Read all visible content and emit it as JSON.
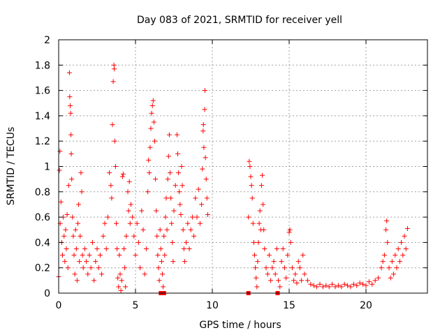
{
  "chart_data": {
    "type": "scatter",
    "title": "Day 083 of 2021, SRMTID for receiver yell",
    "xlabel": "GPS time / hours",
    "ylabel": "SRMTID / TECUs",
    "xlim": [
      0,
      24
    ],
    "ylim": [
      0,
      2
    ],
    "xticks": [
      0,
      5,
      10,
      15,
      20
    ],
    "xtick_labels": [
      "0",
      "5",
      "10",
      "15",
      "20"
    ],
    "yticks": [
      0,
      0.2,
      0.4,
      0.6,
      0.8,
      1,
      1.2,
      1.4,
      1.6,
      1.8,
      2
    ],
    "ytick_labels": [
      "0",
      "0.2",
      "0.4",
      "0.6",
      "0.8",
      "1",
      "1.2",
      "1.4",
      "1.6",
      "1.8",
      "2"
    ],
    "grid": true,
    "marker": "plus",
    "color": "#ff0000",
    "series": [
      {
        "name": "SRMTID",
        "points": [
          [
            0.0,
            0.13
          ],
          [
            0.05,
            0.97
          ],
          [
            0.08,
            1.12
          ],
          [
            0.1,
            0.55
          ],
          [
            0.15,
            0.72
          ],
          [
            0.2,
            0.4
          ],
          [
            0.25,
            0.3
          ],
          [
            0.3,
            0.6
          ],
          [
            0.35,
            0.45
          ],
          [
            0.4,
            0.25
          ],
          [
            0.45,
            0.5
          ],
          [
            0.5,
            0.35
          ],
          [
            0.55,
            0.62
          ],
          [
            0.6,
            0.2
          ],
          [
            0.65,
            0.85
          ],
          [
            0.7,
            1.74
          ],
          [
            0.72,
            1.55
          ],
          [
            0.75,
            1.48
          ],
          [
            0.78,
            1.42
          ],
          [
            0.8,
            1.25
          ],
          [
            0.82,
            1.1
          ],
          [
            0.85,
            0.9
          ],
          [
            0.9,
            0.6
          ],
          [
            0.95,
            0.45
          ],
          [
            1.0,
            0.3
          ],
          [
            1.05,
            0.15
          ],
          [
            1.1,
            0.5
          ],
          [
            1.15,
            0.35
          ],
          [
            1.2,
            0.1
          ],
          [
            1.25,
            0.55
          ],
          [
            1.3,
            0.7
          ],
          [
            1.35,
            0.25
          ],
          [
            1.4,
            0.45
          ],
          [
            1.45,
            0.95
          ],
          [
            1.5,
            0.8
          ],
          [
            1.55,
            0.3
          ],
          [
            1.6,
            0.2
          ],
          [
            1.7,
            0.35
          ],
          [
            1.8,
            0.25
          ],
          [
            1.9,
            0.15
          ],
          [
            2.0,
            0.3
          ],
          [
            2.1,
            0.2
          ],
          [
            2.2,
            0.4
          ],
          [
            2.3,
            0.1
          ],
          [
            2.4,
            0.25
          ],
          [
            2.5,
            0.35
          ],
          [
            2.6,
            0.2
          ],
          [
            2.7,
            0.3
          ],
          [
            2.8,
            0.15
          ],
          [
            2.9,
            0.45
          ],
          [
            3.0,
            0.55
          ],
          [
            3.1,
            0.35
          ],
          [
            3.2,
            0.6
          ],
          [
            3.3,
            0.95
          ],
          [
            3.4,
            0.85
          ],
          [
            3.45,
            0.75
          ],
          [
            3.5,
            1.33
          ],
          [
            3.55,
            1.67
          ],
          [
            3.6,
            1.8
          ],
          [
            3.62,
            1.77
          ],
          [
            3.65,
            1.2
          ],
          [
            3.7,
            1.0
          ],
          [
            3.75,
            0.55
          ],
          [
            3.8,
            0.35
          ],
          [
            3.85,
            0.12
          ],
          [
            3.9,
            0.05
          ],
          [
            3.95,
            0.3
          ],
          [
            4.0,
            0.15
          ],
          [
            4.05,
            0.02
          ],
          [
            4.1,
            0.1
          ],
          [
            4.15,
            0.92
          ],
          [
            4.2,
            0.94
          ],
          [
            4.25,
            0.35
          ],
          [
            4.3,
            0.2
          ],
          [
            4.35,
            0.05
          ],
          [
            4.4,
            0.45
          ],
          [
            4.5,
            0.8
          ],
          [
            4.55,
            0.65
          ],
          [
            4.6,
            0.88
          ],
          [
            4.65,
            0.55
          ],
          [
            4.7,
            0.7
          ],
          [
            4.8,
            0.6
          ],
          [
            4.9,
            0.45
          ],
          [
            5.0,
            0.3
          ],
          [
            5.1,
            0.55
          ],
          [
            5.2,
            0.4
          ],
          [
            5.3,
            0.2
          ],
          [
            5.4,
            0.65
          ],
          [
            5.5,
            0.5
          ],
          [
            5.6,
            0.15
          ],
          [
            5.7,
            0.35
          ],
          [
            5.8,
            0.8
          ],
          [
            5.85,
            1.05
          ],
          [
            5.9,
            0.95
          ],
          [
            5.95,
            1.15
          ],
          [
            6.0,
            1.3
          ],
          [
            6.05,
            1.42
          ],
          [
            6.1,
            1.48
          ],
          [
            6.15,
            1.52
          ],
          [
            6.2,
            1.35
          ],
          [
            6.25,
            1.2
          ],
          [
            6.3,
            0.9
          ],
          [
            6.35,
            0.65
          ],
          [
            6.4,
            0.45
          ],
          [
            6.45,
            0.3
          ],
          [
            6.5,
            0.2
          ],
          [
            6.55,
            0.1
          ],
          [
            6.6,
            0.5
          ],
          [
            6.65,
            0.35
          ],
          [
            6.7,
            0.25
          ],
          [
            6.75,
            0.15
          ],
          [
            6.8,
            0.05
          ],
          [
            6.85,
            0.45
          ],
          [
            6.9,
            0.3
          ],
          [
            6.95,
            0.6
          ],
          [
            7.0,
            0.75
          ],
          [
            7.05,
            0.5
          ],
          [
            7.1,
            0.9
          ],
          [
            7.15,
            1.08
          ],
          [
            7.2,
            1.25
          ],
          [
            7.25,
            0.95
          ],
          [
            7.3,
            0.75
          ],
          [
            7.35,
            0.55
          ],
          [
            7.4,
            0.4
          ],
          [
            7.45,
            0.25
          ],
          [
            7.5,
            0.65
          ],
          [
            7.6,
            0.85
          ],
          [
            7.7,
            1.25
          ],
          [
            7.75,
            1.1
          ],
          [
            7.8,
            0.95
          ],
          [
            7.85,
            0.8
          ],
          [
            7.9,
            0.7
          ],
          [
            7.95,
            0.62
          ],
          [
            8.0,
            1.0
          ],
          [
            8.05,
            0.85
          ],
          [
            8.1,
            0.5
          ],
          [
            8.15,
            0.35
          ],
          [
            8.2,
            0.25
          ],
          [
            8.3,
            0.4
          ],
          [
            8.4,
            0.55
          ],
          [
            8.5,
            0.35
          ],
          [
            8.6,
            0.5
          ],
          [
            8.7,
            0.6
          ],
          [
            8.8,
            0.45
          ],
          [
            8.9,
            0.75
          ],
          [
            9.0,
            0.6
          ],
          [
            9.1,
            0.82
          ],
          [
            9.2,
            0.55
          ],
          [
            9.3,
            0.7
          ],
          [
            9.35,
            0.98
          ],
          [
            9.4,
            1.28
          ],
          [
            9.42,
            1.33
          ],
          [
            9.45,
            1.15
          ],
          [
            9.5,
            1.45
          ],
          [
            9.52,
            1.6
          ],
          [
            9.55,
            1.07
          ],
          [
            9.6,
            0.9
          ],
          [
            9.65,
            0.75
          ],
          [
            9.7,
            0.62
          ],
          [
            12.35,
            0.6
          ],
          [
            12.4,
            1.04
          ],
          [
            12.45,
            1.0
          ],
          [
            12.5,
            0.92
          ],
          [
            12.55,
            0.85
          ],
          [
            12.6,
            0.75
          ],
          [
            12.65,
            0.55
          ],
          [
            12.7,
            0.4
          ],
          [
            12.75,
            0.3
          ],
          [
            12.8,
            0.2
          ],
          [
            12.85,
            0.12
          ],
          [
            12.9,
            0.05
          ],
          [
            12.95,
            0.25
          ],
          [
            13.0,
            0.4
          ],
          [
            13.05,
            0.55
          ],
          [
            13.1,
            0.65
          ],
          [
            13.15,
            0.5
          ],
          [
            13.2,
            0.85
          ],
          [
            13.25,
            0.93
          ],
          [
            13.3,
            0.7
          ],
          [
            13.35,
            0.5
          ],
          [
            13.4,
            0.35
          ],
          [
            13.5,
            0.2
          ],
          [
            13.6,
            0.15
          ],
          [
            13.7,
            0.3
          ],
          [
            13.8,
            0.1
          ],
          [
            13.9,
            0.2
          ],
          [
            14.0,
            0.25
          ],
          [
            14.1,
            0.15
          ],
          [
            14.2,
            0.35
          ],
          [
            14.3,
            0.1
          ],
          [
            14.4,
            0.05
          ],
          [
            14.5,
            0.25
          ],
          [
            14.6,
            0.35
          ],
          [
            14.7,
            0.2
          ],
          [
            14.8,
            0.12
          ],
          [
            14.9,
            0.3
          ],
          [
            15.0,
            0.48
          ],
          [
            15.05,
            0.5
          ],
          [
            15.1,
            0.4
          ],
          [
            15.2,
            0.2
          ],
          [
            15.3,
            0.1
          ],
          [
            15.4,
            0.15
          ],
          [
            15.5,
            0.08
          ],
          [
            15.6,
            0.25
          ],
          [
            15.7,
            0.2
          ],
          [
            15.8,
            0.1
          ],
          [
            15.9,
            0.3
          ],
          [
            16.0,
            0.15
          ],
          [
            16.2,
            0.1
          ],
          [
            16.4,
            0.07
          ],
          [
            16.6,
            0.06
          ],
          [
            16.8,
            0.05
          ],
          [
            17.0,
            0.07
          ],
          [
            17.2,
            0.05
          ],
          [
            17.4,
            0.06
          ],
          [
            17.6,
            0.05
          ],
          [
            17.8,
            0.07
          ],
          [
            18.0,
            0.05
          ],
          [
            18.2,
            0.06
          ],
          [
            18.4,
            0.05
          ],
          [
            18.6,
            0.07
          ],
          [
            18.8,
            0.06
          ],
          [
            19.0,
            0.05
          ],
          [
            19.2,
            0.07
          ],
          [
            19.4,
            0.06
          ],
          [
            19.6,
            0.08
          ],
          [
            19.8,
            0.07
          ],
          [
            20.0,
            0.06
          ],
          [
            20.2,
            0.09
          ],
          [
            20.4,
            0.07
          ],
          [
            20.6,
            0.1
          ],
          [
            20.8,
            0.12
          ],
          [
            21.0,
            0.2
          ],
          [
            21.1,
            0.25
          ],
          [
            21.2,
            0.3
          ],
          [
            21.3,
            0.5
          ],
          [
            21.35,
            0.57
          ],
          [
            21.4,
            0.4
          ],
          [
            21.5,
            0.2
          ],
          [
            21.6,
            0.12
          ],
          [
            21.7,
            0.25
          ],
          [
            21.8,
            0.15
          ],
          [
            21.9,
            0.3
          ],
          [
            22.0,
            0.2
          ],
          [
            22.1,
            0.35
          ],
          [
            22.2,
            0.25
          ],
          [
            22.3,
            0.4
          ],
          [
            22.4,
            0.3
          ],
          [
            22.5,
            0.45
          ],
          [
            22.6,
            0.35
          ],
          [
            22.7,
            0.51
          ]
        ]
      },
      {
        "name": "zero markers",
        "marker": "square",
        "points": [
          [
            6.65,
            0.0
          ],
          [
            6.75,
            0.0
          ],
          [
            6.85,
            0.0
          ],
          [
            12.35,
            0.0
          ],
          [
            14.25,
            0.0
          ]
        ]
      }
    ]
  }
}
